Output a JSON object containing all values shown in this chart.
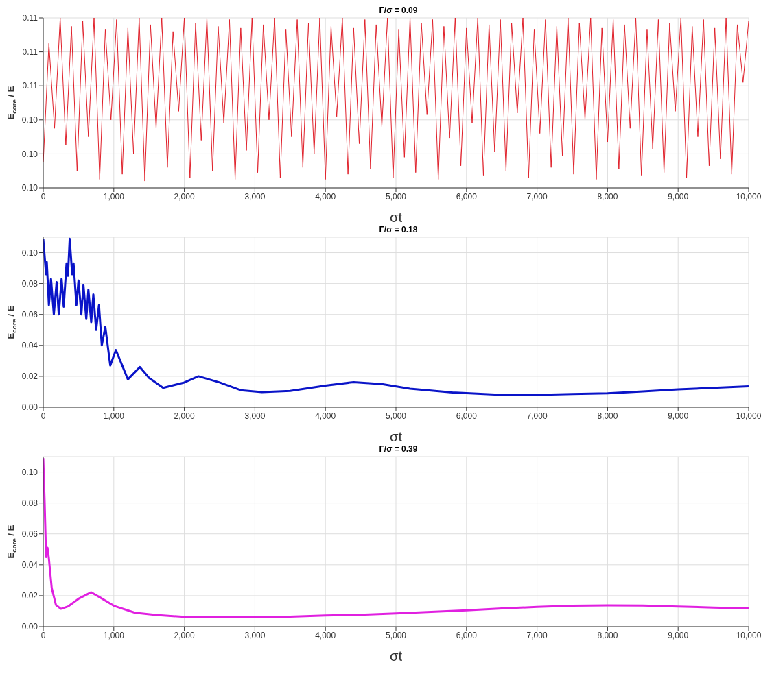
{
  "chart_data": [
    {
      "type": "line",
      "title": "Γ/σ = 0.09",
      "xlabel": "σt",
      "ylabel": "E$_{core}$ / E",
      "grid": true,
      "marker": "none",
      "line_style": "solid",
      "xlim": [
        0,
        10000
      ],
      "xticks": [
        {
          "value": 0,
          "label": "0"
        },
        {
          "value": 1000,
          "label": "1,000"
        },
        {
          "value": 2000,
          "label": "2,000"
        },
        {
          "value": 3000,
          "label": "3,000"
        },
        {
          "value": 4000,
          "label": "4,000"
        },
        {
          "value": 5000,
          "label": "5,000"
        },
        {
          "value": 6000,
          "label": "6,000"
        },
        {
          "value": 7000,
          "label": "7,000"
        },
        {
          "value": 8000,
          "label": "8,000"
        },
        {
          "value": 9000,
          "label": "9,000"
        },
        {
          "value": 10000,
          "label": "10,000"
        }
      ],
      "ylim": [
        0.1,
        0.11
      ],
      "yticks": [
        {
          "value": 0.1,
          "label": "0.10"
        },
        {
          "value": 0.102,
          "label": "0.10"
        },
        {
          "value": 0.104,
          "label": "0.10"
        },
        {
          "value": 0.106,
          "label": "0.11"
        },
        {
          "value": 0.108,
          "label": "0.11"
        },
        {
          "value": 0.11,
          "label": "0.11"
        }
      ],
      "series": [
        {
          "color": "#e0202a",
          "x": [
            0,
            80,
            160,
            240,
            320,
            400,
            480,
            560,
            640,
            720,
            800,
            880,
            960,
            1040,
            1120,
            1200,
            1280,
            1360,
            1440,
            1520,
            1600,
            1680,
            1760,
            1840,
            1920,
            2000,
            2080,
            2160,
            2240,
            2320,
            2400,
            2480,
            2560,
            2640,
            2720,
            2800,
            2880,
            2960,
            3040,
            3120,
            3200,
            3280,
            3360,
            3440,
            3520,
            3600,
            3680,
            3760,
            3840,
            3920,
            4000,
            4080,
            4160,
            4240,
            4320,
            4400,
            4480,
            4560,
            4640,
            4720,
            4800,
            4880,
            4960,
            5040,
            5120,
            5200,
            5280,
            5360,
            5440,
            5520,
            5600,
            5680,
            5760,
            5840,
            5920,
            6000,
            6080,
            6160,
            6240,
            6320,
            6400,
            6480,
            6560,
            6640,
            6720,
            6800,
            6880,
            6960,
            7040,
            7120,
            7200,
            7280,
            7360,
            7440,
            7520,
            7600,
            7680,
            7760,
            7840,
            7920,
            8000,
            8080,
            8160,
            8240,
            8320,
            8400,
            8480,
            8560,
            8640,
            8720,
            8800,
            8880,
            8960,
            9040,
            9120,
            9200,
            9280,
            9360,
            9440,
            9520,
            9600,
            9680,
            9760,
            9840,
            9920,
            10000
          ],
          "values": [
            0.1015,
            0.1085,
            0.1035,
            0.11,
            0.1025,
            0.1095,
            0.101,
            0.1098,
            0.103,
            0.11,
            0.1005,
            0.1093,
            0.104,
            0.1099,
            0.1008,
            0.1094,
            0.102,
            0.11,
            0.1004,
            0.1096,
            0.1035,
            0.11,
            0.1012,
            0.1092,
            0.1045,
            0.11,
            0.1006,
            0.1097,
            0.1028,
            0.11,
            0.101,
            0.1095,
            0.1038,
            0.1099,
            0.1005,
            0.1094,
            0.1022,
            0.11,
            0.1009,
            0.1096,
            0.104,
            0.11,
            0.1006,
            0.1093,
            0.103,
            0.1099,
            0.1012,
            0.1097,
            0.102,
            0.11,
            0.1005,
            0.1095,
            0.1042,
            0.11,
            0.1008,
            0.1094,
            0.1026,
            0.1099,
            0.1011,
            0.1096,
            0.1036,
            0.11,
            0.1006,
            0.1093,
            0.1018,
            0.11,
            0.1009,
            0.1097,
            0.1043,
            0.1099,
            0.1005,
            0.1095,
            0.1029,
            0.11,
            0.1013,
            0.1094,
            0.1038,
            0.11,
            0.1007,
            0.1096,
            0.1021,
            0.1099,
            0.101,
            0.1097,
            0.1044,
            0.11,
            0.1006,
            0.1093,
            0.1032,
            0.1099,
            0.1012,
            0.1095,
            0.1019,
            0.11,
            0.1008,
            0.1097,
            0.104,
            0.11,
            0.1005,
            0.1094,
            0.1027,
            0.1099,
            0.1011,
            0.1096,
            0.1035,
            0.11,
            0.1007,
            0.1093,
            0.1023,
            0.1099,
            0.1009,
            0.1097,
            0.1045,
            0.11,
            0.1006,
            0.1095,
            0.103,
            0.1099,
            0.1013,
            0.1094,
            0.1017,
            0.11,
            0.1008,
            0.1096,
            0.1062,
            0.1098
          ]
        }
      ]
    },
    {
      "type": "line",
      "title": "Γ/σ = 0.18",
      "xlabel": "σt",
      "ylabel": "E$_{core}$ / E",
      "grid": true,
      "marker": "none",
      "line_style": "solid",
      "xlim": [
        0,
        10000
      ],
      "xticks": [
        {
          "value": 0,
          "label": "0"
        },
        {
          "value": 1000,
          "label": "1,000"
        },
        {
          "value": 2000,
          "label": "2,000"
        },
        {
          "value": 3000,
          "label": "3,000"
        },
        {
          "value": 4000,
          "label": "4,000"
        },
        {
          "value": 5000,
          "label": "5,000"
        },
        {
          "value": 6000,
          "label": "6,000"
        },
        {
          "value": 7000,
          "label": "7,000"
        },
        {
          "value": 8000,
          "label": "8,000"
        },
        {
          "value": 9000,
          "label": "9,000"
        },
        {
          "value": 10000,
          "label": "10,000"
        }
      ],
      "ylim": [
        0,
        0.11
      ],
      "yticks": [
        {
          "value": 0,
          "label": "0.00"
        },
        {
          "value": 0.02,
          "label": "0.02"
        },
        {
          "value": 0.04,
          "label": "0.04"
        },
        {
          "value": 0.06,
          "label": "0.06"
        },
        {
          "value": 0.08,
          "label": "0.08"
        },
        {
          "value": 0.1,
          "label": "0.10"
        }
      ],
      "series": [
        {
          "color": "#0a14c8",
          "x": [
            0,
            40,
            50,
            80,
            110,
            150,
            190,
            220,
            260,
            290,
            330,
            350,
            375,
            410,
            430,
            470,
            500,
            540,
            570,
            610,
            640,
            680,
            710,
            750,
            790,
            830,
            880,
            950,
            1030,
            1200,
            1370,
            1500,
            1700,
            2000,
            2200,
            2500,
            2800,
            3100,
            3500,
            4000,
            4400,
            4800,
            5200,
            5800,
            6500,
            7000,
            7500,
            8000,
            8500,
            9000,
            9500,
            10000
          ],
          "values": [
            0.109,
            0.086,
            0.094,
            0.066,
            0.083,
            0.06,
            0.081,
            0.06,
            0.083,
            0.065,
            0.093,
            0.085,
            0.109,
            0.086,
            0.093,
            0.066,
            0.082,
            0.06,
            0.079,
            0.057,
            0.076,
            0.055,
            0.073,
            0.05,
            0.066,
            0.04,
            0.052,
            0.027,
            0.037,
            0.018,
            0.026,
            0.019,
            0.0125,
            0.016,
            0.02,
            0.016,
            0.011,
            0.0098,
            0.0105,
            0.014,
            0.0162,
            0.015,
            0.012,
            0.0095,
            0.008,
            0.008,
            0.0085,
            0.009,
            0.0102,
            0.0115,
            0.0125,
            0.0135
          ]
        }
      ]
    },
    {
      "type": "line",
      "title": "Γ/σ = 0.39",
      "xlabel": "σt",
      "ylabel": "E$_{core}$ / E",
      "grid": true,
      "marker": "none",
      "line_style": "solid",
      "xlim": [
        0,
        10000
      ],
      "xticks": [
        {
          "value": 0,
          "label": "0"
        },
        {
          "value": 1000,
          "label": "1,000"
        },
        {
          "value": 2000,
          "label": "2,000"
        },
        {
          "value": 3000,
          "label": "3,000"
        },
        {
          "value": 4000,
          "label": "4,000"
        },
        {
          "value": 5000,
          "label": "5,000"
        },
        {
          "value": 6000,
          "label": "6,000"
        },
        {
          "value": 7000,
          "label": "7,000"
        },
        {
          "value": 8000,
          "label": "8,000"
        },
        {
          "value": 9000,
          "label": "9,000"
        },
        {
          "value": 10000,
          "label": "10,000"
        }
      ],
      "ylim": [
        0,
        0.11
      ],
      "yticks": [
        {
          "value": 0,
          "label": "0.00"
        },
        {
          "value": 0.02,
          "label": "0.02"
        },
        {
          "value": 0.04,
          "label": "0.04"
        },
        {
          "value": 0.06,
          "label": "0.06"
        },
        {
          "value": 0.08,
          "label": "0.08"
        },
        {
          "value": 0.1,
          "label": "0.10"
        }
      ],
      "series": [
        {
          "color": "#e020e0",
          "x": [
            0,
            20,
            40,
            60,
            80,
            120,
            180,
            250,
            350,
            500,
            680,
            800,
            1000,
            1300,
            1600,
            2000,
            2500,
            3000,
            3500,
            4000,
            4500,
            5000,
            5500,
            6000,
            6500,
            7000,
            7500,
            8000,
            8500,
            9000,
            9500,
            10000
          ],
          "values": [
            0.109,
            0.08,
            0.045,
            0.051,
            0.044,
            0.025,
            0.014,
            0.0115,
            0.013,
            0.018,
            0.0222,
            0.019,
            0.0135,
            0.009,
            0.0075,
            0.0063,
            0.006,
            0.006,
            0.0064,
            0.0072,
            0.0077,
            0.0085,
            0.0095,
            0.0105,
            0.0118,
            0.0127,
            0.0135,
            0.0138,
            0.0136,
            0.013,
            0.0123,
            0.0117
          ]
        }
      ]
    }
  ]
}
